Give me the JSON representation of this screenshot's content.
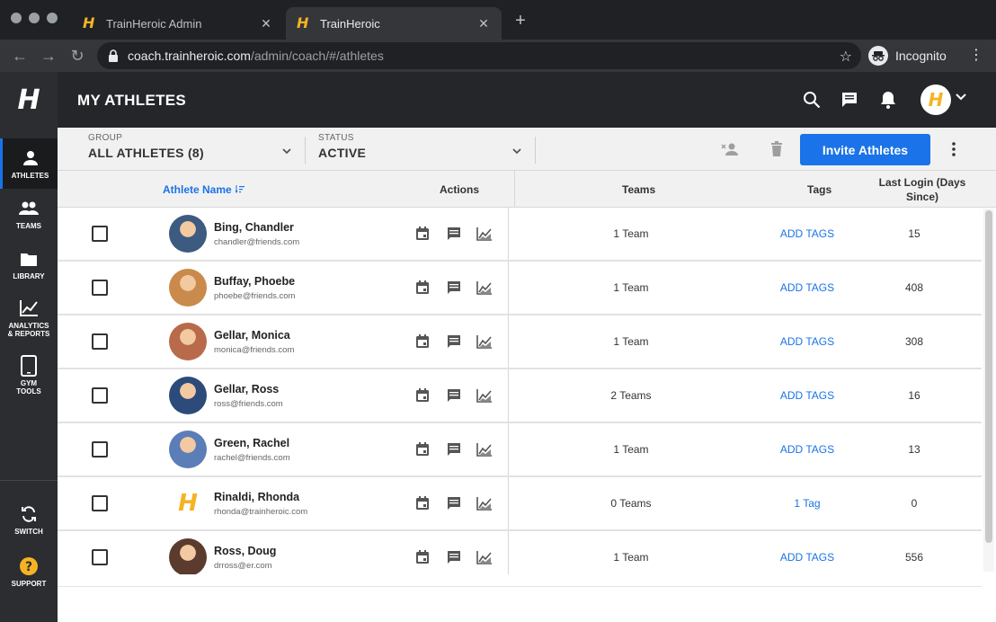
{
  "browser": {
    "tabs": [
      {
        "title": "TrainHeroic Admin",
        "favicon": "H"
      },
      {
        "title": "TrainHeroic",
        "favicon": "H"
      }
    ],
    "url_host": "coach.trainheroic.com",
    "url_path": "/admin/coach/#/athletes",
    "incognito_label": "Incognito"
  },
  "sidebar": {
    "logo": "H",
    "items": [
      {
        "label": "ATHLETES",
        "icon": "person-icon"
      },
      {
        "label": "TEAMS",
        "icon": "group-icon"
      },
      {
        "label": "LIBRARY",
        "icon": "folder-icon"
      },
      {
        "label": "ANALYTICS & REPORTS",
        "icon": "chart-icon"
      },
      {
        "label": "GYM TOOLS",
        "icon": "tablet-icon"
      },
      {
        "label": "SWITCH",
        "icon": "switch-icon"
      },
      {
        "label": "SUPPORT",
        "icon": "help-icon"
      }
    ]
  },
  "header": {
    "title": "MY ATHLETES",
    "avatar": "H"
  },
  "filters": {
    "group_label": "GROUP",
    "group_value": "ALL ATHLETES (8)",
    "status_label": "STATUS",
    "status_value": "ACTIVE",
    "invite_label": "Invite Athletes"
  },
  "table": {
    "columns": {
      "name": "Athlete Name",
      "actions": "Actions",
      "teams": "Teams",
      "tags": "Tags",
      "last_login": "Last Login (Days Since)"
    },
    "rows": [
      {
        "name": "Bing, Chandler",
        "email": "chandler@friends.com",
        "teams": "1 Team",
        "tags": "ADD TAGS",
        "last_login": "15",
        "avatar_color": "#3d5a80"
      },
      {
        "name": "Buffay, Phoebe",
        "email": "phoebe@friends.com",
        "teams": "1 Team",
        "tags": "ADD TAGS",
        "last_login": "408",
        "avatar_color": "#c98a4b"
      },
      {
        "name": "Gellar, Monica",
        "email": "monica@friends.com",
        "teams": "1 Team",
        "tags": "ADD TAGS",
        "last_login": "308",
        "avatar_color": "#b86a4a"
      },
      {
        "name": "Gellar, Ross",
        "email": "ross@friends.com",
        "teams": "2 Teams",
        "tags": "ADD TAGS",
        "last_login": "16",
        "avatar_color": "#2c4a7a"
      },
      {
        "name": "Green, Rachel",
        "email": "rachel@friends.com",
        "teams": "1 Team",
        "tags": "ADD TAGS",
        "last_login": "13",
        "avatar_color": "#5b7db8"
      },
      {
        "name": "Rinaldi, Rhonda",
        "email": "rhonda@trainheroic.com",
        "teams": "0 Teams",
        "tags": "1 Tag",
        "last_login": "0",
        "avatar_color": "logo"
      },
      {
        "name": "Ross, Doug",
        "email": "drross@er.com",
        "teams": "1 Team",
        "tags": "ADD TAGS",
        "last_login": "556",
        "avatar_color": "#5a3b2e"
      }
    ]
  },
  "colors": {
    "accent": "#1a73e8",
    "brand_yellow": "#f5b323"
  }
}
